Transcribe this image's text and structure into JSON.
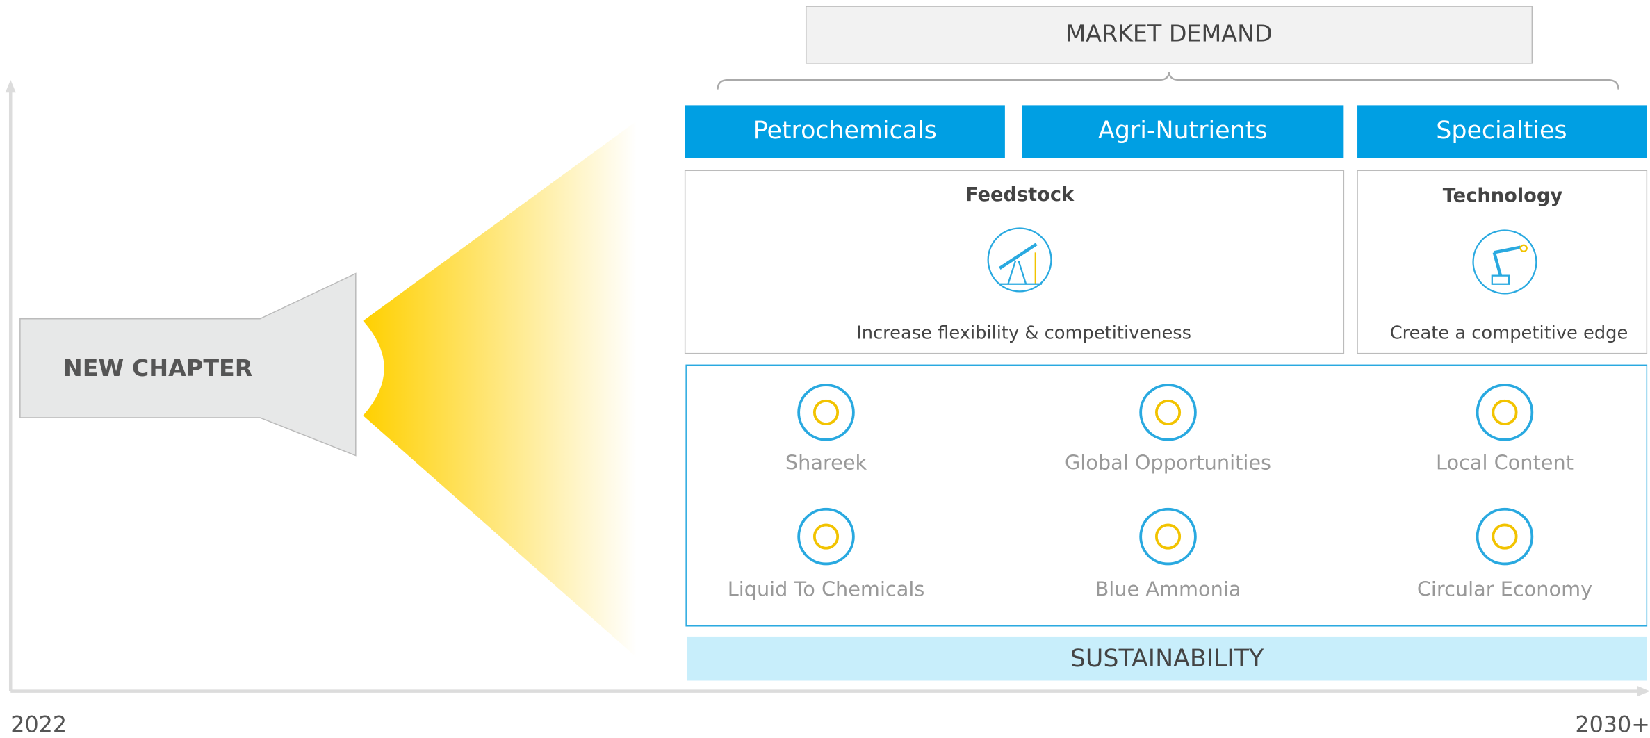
{
  "market_demand": "MARKET DEMAND",
  "segments": [
    "Petrochemicals",
    "Agri-Nutrients",
    "Specialties"
  ],
  "pillars": [
    {
      "title": "Feedstock",
      "caption": "Increase flexibility & competitiveness"
    },
    {
      "title": "Technology",
      "caption": "Create a competitive edge"
    }
  ],
  "initiatives": [
    "Shareek",
    "Global Opportunities",
    "Local Content",
    "Liquid To Chemicals",
    "Blue Ammonia",
    "Circular Economy"
  ],
  "sustainability": "SUSTAINABILITY",
  "new_chapter": "NEW CHAPTER",
  "axis": {
    "start": "2022",
    "end": "2030+"
  }
}
